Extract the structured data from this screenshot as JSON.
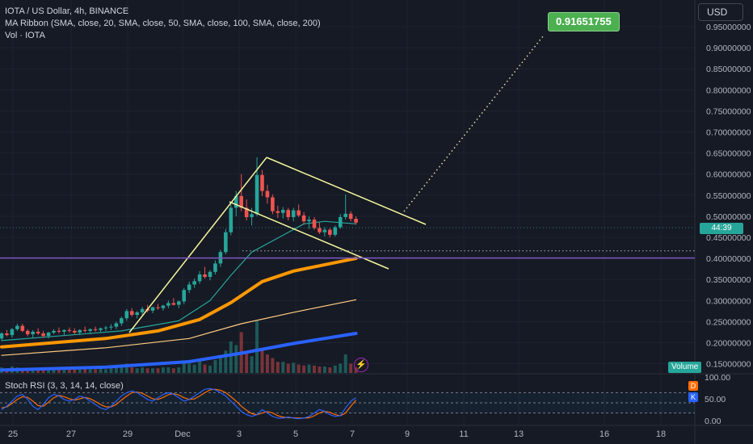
{
  "legend": {
    "symbol_line": "IOTA / US Dollar, 4h, BINANCE",
    "ma_ribbon": "MA Ribbon (SMA, close, 20, SMA, close, 50, SMA, close, 100, SMA, close, 200)",
    "volume": "Vol · IOTA"
  },
  "currency_button": "USD",
  "target_label": "0.91651755",
  "current_price_tag": "44:39",
  "stoch_legend": "Stoch RSI (3, 3, 14, 14, close)",
  "volume_tag": "Volume",
  "badges": {
    "d": "D",
    "k": "K"
  },
  "lightning": "⚡",
  "colors": {
    "background": "#161a25",
    "up": "#26a69a",
    "down": "#ef5350",
    "ma20": "#26a69a",
    "ma50": "#ff9800",
    "ma100": "#ffcc80",
    "ma200": "#2962ff",
    "trendline": "#f5f59a",
    "target": "#4caf50",
    "horizontal": "#7e57c2",
    "stoch_k": "#2962ff",
    "stoch_d": "#ff6d00"
  },
  "chart_data": {
    "type": "candlestick",
    "title": "IOTA / US Dollar, 4h, BINANCE",
    "y_ticks": [
      "0.95000000",
      "0.90000000",
      "0.85000000",
      "0.80000000",
      "0.75000000",
      "0.70000000",
      "0.65000000",
      "0.60000000",
      "0.55000000",
      "0.50000000",
      "0.45000000",
      "0.40000000",
      "0.35000000",
      "0.30000000",
      "0.25000000",
      "0.20000000",
      "0.15000000"
    ],
    "x_ticks": [
      "25",
      "27",
      "29",
      "Dec",
      "3",
      "5",
      "7",
      "9",
      "11",
      "13",
      "16",
      "18"
    ],
    "ylim": [
      0.12,
      0.97
    ],
    "stoch_ticks": [
      "100.00",
      "50.00",
      "0.00"
    ],
    "candles": [
      [
        0.21,
        0.225,
        0.205,
        0.222
      ],
      [
        0.222,
        0.23,
        0.215,
        0.218
      ],
      [
        0.218,
        0.235,
        0.212,
        0.232
      ],
      [
        0.232,
        0.245,
        0.228,
        0.24
      ],
      [
        0.24,
        0.245,
        0.225,
        0.228
      ],
      [
        0.228,
        0.232,
        0.215,
        0.22
      ],
      [
        0.22,
        0.23,
        0.212,
        0.226
      ],
      [
        0.226,
        0.234,
        0.218,
        0.222
      ],
      [
        0.222,
        0.228,
        0.212,
        0.216
      ],
      [
        0.216,
        0.226,
        0.21,
        0.224
      ],
      [
        0.224,
        0.232,
        0.22,
        0.228
      ],
      [
        0.228,
        0.236,
        0.222,
        0.226
      ],
      [
        0.226,
        0.232,
        0.218,
        0.23
      ],
      [
        0.23,
        0.236,
        0.224,
        0.228
      ],
      [
        0.228,
        0.234,
        0.22,
        0.224
      ],
      [
        0.224,
        0.232,
        0.218,
        0.23
      ],
      [
        0.23,
        0.238,
        0.224,
        0.228
      ],
      [
        0.228,
        0.234,
        0.22,
        0.232
      ],
      [
        0.232,
        0.238,
        0.226,
        0.23
      ],
      [
        0.23,
        0.236,
        0.224,
        0.234
      ],
      [
        0.234,
        0.24,
        0.228,
        0.236
      ],
      [
        0.236,
        0.244,
        0.23,
        0.238
      ],
      [
        0.238,
        0.25,
        0.232,
        0.246
      ],
      [
        0.246,
        0.262,
        0.24,
        0.258
      ],
      [
        0.258,
        0.28,
        0.252,
        0.275
      ],
      [
        0.275,
        0.282,
        0.262,
        0.266
      ],
      [
        0.266,
        0.275,
        0.258,
        0.272
      ],
      [
        0.272,
        0.285,
        0.266,
        0.28
      ],
      [
        0.28,
        0.29,
        0.272,
        0.276
      ],
      [
        0.276,
        0.286,
        0.27,
        0.284
      ],
      [
        0.284,
        0.292,
        0.278,
        0.282
      ],
      [
        0.282,
        0.29,
        0.276,
        0.288
      ],
      [
        0.288,
        0.3,
        0.282,
        0.294
      ],
      [
        0.294,
        0.306,
        0.288,
        0.29
      ],
      [
        0.29,
        0.3,
        0.282,
        0.298
      ],
      [
        0.298,
        0.33,
        0.292,
        0.325
      ],
      [
        0.325,
        0.345,
        0.318,
        0.338
      ],
      [
        0.338,
        0.352,
        0.33,
        0.346
      ],
      [
        0.346,
        0.37,
        0.34,
        0.362
      ],
      [
        0.362,
        0.38,
        0.352,
        0.356
      ],
      [
        0.356,
        0.372,
        0.348,
        0.368
      ],
      [
        0.368,
        0.395,
        0.362,
        0.388
      ],
      [
        0.388,
        0.42,
        0.38,
        0.415
      ],
      [
        0.415,
        0.47,
        0.41,
        0.462
      ],
      [
        0.462,
        0.53,
        0.455,
        0.52
      ],
      [
        0.52,
        0.56,
        0.5,
        0.548
      ],
      [
        0.548,
        0.6,
        0.512,
        0.52
      ],
      [
        0.52,
        0.54,
        0.49,
        0.498
      ],
      [
        0.498,
        0.52,
        0.478,
        0.505
      ],
      [
        0.505,
        0.64,
        0.5,
        0.598
      ],
      [
        0.598,
        0.61,
        0.548,
        0.56
      ],
      [
        0.56,
        0.575,
        0.53,
        0.545
      ],
      [
        0.545,
        0.552,
        0.505,
        0.512
      ],
      [
        0.512,
        0.525,
        0.496,
        0.508
      ],
      [
        0.508,
        0.522,
        0.495,
        0.515
      ],
      [
        0.515,
        0.52,
        0.49,
        0.498
      ],
      [
        0.498,
        0.52,
        0.488,
        0.514
      ],
      [
        0.514,
        0.528,
        0.498,
        0.502
      ],
      [
        0.502,
        0.51,
        0.48,
        0.488
      ],
      [
        0.488,
        0.5,
        0.47,
        0.492
      ],
      [
        0.492,
        0.498,
        0.468,
        0.472
      ],
      [
        0.472,
        0.485,
        0.458,
        0.462
      ],
      [
        0.462,
        0.474,
        0.452,
        0.468
      ],
      [
        0.468,
        0.472,
        0.45,
        0.456
      ],
      [
        0.456,
        0.478,
        0.452,
        0.474
      ],
      [
        0.474,
        0.505,
        0.47,
        0.498
      ],
      [
        0.498,
        0.552,
        0.492,
        0.506
      ],
      [
        0.506,
        0.512,
        0.488,
        0.494
      ],
      [
        0.494,
        0.5,
        0.48,
        0.485
      ]
    ],
    "volumes": [
      6,
      5,
      7,
      6,
      5,
      4,
      5,
      4,
      4,
      5,
      4,
      4,
      5,
      4,
      4,
      4,
      5,
      4,
      4,
      5,
      4,
      5,
      6,
      8,
      10,
      6,
      5,
      6,
      5,
      5,
      5,
      6,
      6,
      5,
      6,
      12,
      10,
      9,
      13,
      9,
      8,
      14,
      18,
      24,
      34,
      30,
      44,
      22,
      18,
      56,
      26,
      20,
      16,
      12,
      12,
      10,
      11,
      9,
      8,
      9,
      8,
      7,
      7,
      6,
      8,
      10,
      20,
      10,
      6
    ],
    "ma20_curve": [
      [
        0,
        0.205
      ],
      [
        23,
        0.228
      ],
      [
        34,
        0.252
      ],
      [
        40,
        0.3
      ],
      [
        44,
        0.36
      ],
      [
        48,
        0.415
      ],
      [
        54,
        0.455
      ],
      [
        58,
        0.482
      ],
      [
        62,
        0.488
      ],
      [
        66,
        0.484
      ],
      [
        68,
        0.482
      ]
    ],
    "ma50_curve": [
      [
        0,
        0.19
      ],
      [
        20,
        0.21
      ],
      [
        30,
        0.228
      ],
      [
        38,
        0.255
      ],
      [
        44,
        0.295
      ],
      [
        50,
        0.345
      ],
      [
        56,
        0.37
      ],
      [
        62,
        0.385
      ],
      [
        68,
        0.4
      ]
    ],
    "ma100_curve": [
      [
        0,
        0.17
      ],
      [
        20,
        0.188
      ],
      [
        36,
        0.21
      ],
      [
        46,
        0.245
      ],
      [
        56,
        0.272
      ],
      [
        68,
        0.302
      ]
    ],
    "ma200_curve": [
      [
        0,
        0.135
      ],
      [
        20,
        0.142
      ],
      [
        36,
        0.155
      ],
      [
        46,
        0.175
      ],
      [
        56,
        0.198
      ],
      [
        68,
        0.222
      ]
    ],
    "stoch_k": [
      30,
      40,
      55,
      70,
      75,
      60,
      40,
      30,
      45,
      65,
      75,
      70,
      60,
      55,
      60,
      70,
      65,
      55,
      45,
      35,
      30,
      40,
      55,
      70,
      80,
      85,
      80,
      70,
      60,
      55,
      65,
      75,
      80,
      75,
      65,
      55,
      60,
      70,
      80,
      90,
      92,
      88,
      80,
      70,
      55,
      40,
      25,
      15,
      10,
      15,
      30,
      20,
      10,
      5,
      5,
      8,
      5,
      3,
      5,
      10,
      20,
      30,
      25,
      15,
      10,
      12,
      35,
      55,
      65
    ],
    "stoch_d": [
      35,
      38,
      48,
      60,
      68,
      66,
      55,
      42,
      40,
      52,
      65,
      72,
      68,
      62,
      58,
      62,
      66,
      62,
      54,
      45,
      38,
      38,
      45,
      58,
      70,
      80,
      82,
      78,
      70,
      62,
      60,
      66,
      74,
      77,
      73,
      65,
      60,
      62,
      70,
      80,
      88,
      90,
      87,
      80,
      68,
      55,
      40,
      28,
      18,
      15,
      20,
      24,
      20,
      12,
      8,
      6,
      6,
      5,
      5,
      6,
      12,
      20,
      25,
      22,
      15,
      12,
      20,
      40,
      58
    ],
    "annotations": {
      "target_price": 0.91651755,
      "horizontal_level": 0.401,
      "dotted_level": 0.418
    }
  }
}
